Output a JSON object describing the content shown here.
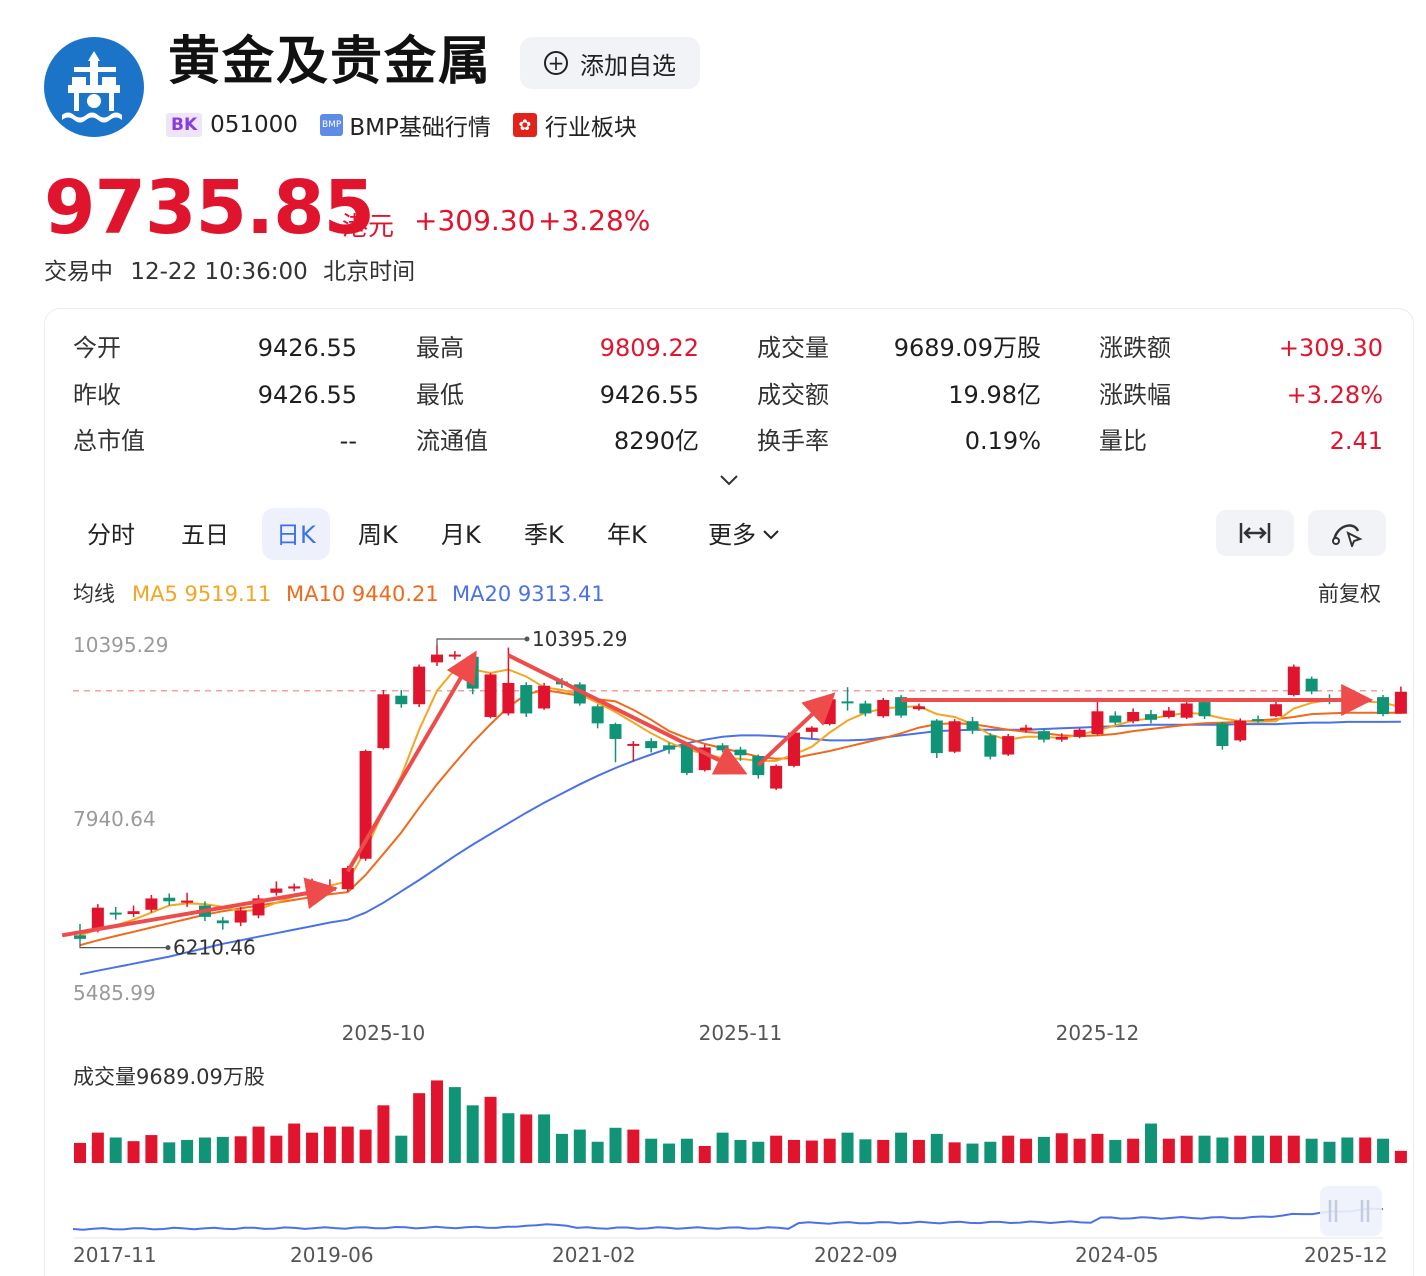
{
  "header": {
    "title": "黄金及贵金属",
    "add_watchlist_label": "添加自选",
    "tags": {
      "bk_badge": "BK",
      "code": "051000",
      "bmp_badge": "BMP",
      "bmp_label": "BMP基础行情",
      "hk_badge": "✿",
      "sector_label": "行业板块"
    }
  },
  "quote": {
    "price": "9735.85",
    "unit": "港元",
    "change": "+309.30",
    "change_pct": "+3.28%",
    "status": "交易中",
    "time": "12-22 10:36:00",
    "timezone": "北京时间"
  },
  "stats": [
    {
      "label": "今开",
      "value": "9426.55",
      "color": "#1f1f1f"
    },
    {
      "label": "最高",
      "value": "9809.22",
      "color": "#e0142d"
    },
    {
      "label": "成交量",
      "value": "9689.09万股",
      "color": "#1f1f1f"
    },
    {
      "label": "涨跌额",
      "value": "+309.30",
      "color": "#e0142d"
    },
    {
      "label": "昨收",
      "value": "9426.55",
      "color": "#1f1f1f"
    },
    {
      "label": "最低",
      "value": "9426.55",
      "color": "#1f1f1f"
    },
    {
      "label": "成交额",
      "value": "19.98亿",
      "color": "#1f1f1f"
    },
    {
      "label": "涨跌幅",
      "value": "+3.28%",
      "color": "#e0142d"
    },
    {
      "label": "总市值",
      "value": "--",
      "color": "#1f1f1f"
    },
    {
      "label": "流通值",
      "value": "8290亿",
      "color": "#1f1f1f"
    },
    {
      "label": "换手率",
      "value": "0.19%",
      "color": "#1f1f1f"
    },
    {
      "label": "量比",
      "value": "2.41",
      "color": "#e0142d"
    }
  ],
  "tabs": [
    "分时",
    "五日",
    "日K",
    "周K",
    "月K",
    "季K",
    "年K",
    "更多"
  ],
  "active_tab": "日K",
  "toolbar": {
    "fit_icon": "fit-width-icon",
    "draw_icon": "draw-tool-icon"
  },
  "colors": {
    "up": "#e0142d",
    "down": "#119476",
    "ma5": "#f4a623",
    "ma10": "#f06a1c",
    "ma20": "#4a72e8",
    "accent": "#3b73e6"
  },
  "chart_data": [
    {
      "type": "candlestick",
      "legend_label": "均线",
      "adjust_label": "前复权",
      "ma_series": [
        {
          "name": "MA5",
          "last": "9519.11"
        },
        {
          "name": "MA10",
          "last": "9440.21"
        },
        {
          "name": "MA20",
          "last": "9313.41"
        }
      ],
      "y_ticks": [
        "10395.29",
        "7940.64",
        "5485.99"
      ],
      "ylim": [
        5485.99,
        10395.29
      ],
      "x_ticks": [
        "2025-10",
        "2025-11",
        "2025-12"
      ],
      "high_marker": "10395.29",
      "low_marker": "6210.46",
      "reference_line": 9750,
      "candles": [
        {
          "o": 6300,
          "c": 6250,
          "h": 6460,
          "l": 6210
        },
        {
          "o": 6380,
          "c": 6690,
          "h": 6740,
          "l": 6340
        },
        {
          "o": 6620,
          "c": 6600,
          "h": 6700,
          "l": 6520
        },
        {
          "o": 6600,
          "c": 6640,
          "h": 6720,
          "l": 6560
        },
        {
          "o": 6660,
          "c": 6820,
          "h": 6870,
          "l": 6620
        },
        {
          "o": 6830,
          "c": 6780,
          "h": 6890,
          "l": 6720
        },
        {
          "o": 6760,
          "c": 6790,
          "h": 6900,
          "l": 6700
        },
        {
          "o": 6720,
          "c": 6560,
          "h": 6780,
          "l": 6500
        },
        {
          "o": 6510,
          "c": 6470,
          "h": 6560,
          "l": 6380
        },
        {
          "o": 6480,
          "c": 6650,
          "h": 6700,
          "l": 6430
        },
        {
          "o": 6580,
          "c": 6820,
          "h": 6870,
          "l": 6540
        },
        {
          "o": 6900,
          "c": 6960,
          "h": 7060,
          "l": 6860
        },
        {
          "o": 6960,
          "c": 6990,
          "h": 7030,
          "l": 6920
        },
        {
          "o": 6940,
          "c": 7010,
          "h": 7100,
          "l": 6900
        },
        {
          "o": 6930,
          "c": 6980,
          "h": 7090,
          "l": 6900
        },
        {
          "o": 6950,
          "c": 7250,
          "h": 7280,
          "l": 6920
        },
        {
          "o": 7380,
          "c": 8900,
          "h": 8920,
          "l": 7350
        },
        {
          "o": 8940,
          "c": 9700,
          "h": 9760,
          "l": 8920
        },
        {
          "o": 9680,
          "c": 9560,
          "h": 9760,
          "l": 9510
        },
        {
          "o": 9560,
          "c": 10090,
          "h": 10120,
          "l": 9520
        },
        {
          "o": 10150,
          "c": 10260,
          "h": 10395,
          "l": 10100
        },
        {
          "o": 10260,
          "c": 10260,
          "h": 10310,
          "l": 10190
        },
        {
          "o": 10230,
          "c": 9780,
          "h": 10260,
          "l": 9700
        },
        {
          "o": 9380,
          "c": 9980,
          "h": 10000,
          "l": 9360
        },
        {
          "o": 9430,
          "c": 9860,
          "h": 10360,
          "l": 9400
        },
        {
          "o": 9830,
          "c": 9430,
          "h": 9870,
          "l": 9380
        },
        {
          "o": 9500,
          "c": 9820,
          "h": 9860,
          "l": 9480
        },
        {
          "o": 9880,
          "c": 9840,
          "h": 9930,
          "l": 9790
        },
        {
          "o": 9840,
          "c": 9570,
          "h": 9870,
          "l": 9540
        },
        {
          "o": 9530,
          "c": 9290,
          "h": 9560,
          "l": 9220
        },
        {
          "o": 9280,
          "c": 9070,
          "h": 9300,
          "l": 8740
        },
        {
          "o": 8980,
          "c": 9000,
          "h": 9040,
          "l": 8750
        },
        {
          "o": 9040,
          "c": 8940,
          "h": 9080,
          "l": 8880
        },
        {
          "o": 8980,
          "c": 8920,
          "h": 9020,
          "l": 8860
        },
        {
          "o": 8990,
          "c": 8590,
          "h": 9010,
          "l": 8560
        },
        {
          "o": 8630,
          "c": 8950,
          "h": 8990,
          "l": 8610
        },
        {
          "o": 8980,
          "c": 8910,
          "h": 9010,
          "l": 8880
        },
        {
          "o": 8920,
          "c": 8840,
          "h": 8960,
          "l": 8760
        },
        {
          "o": 8830,
          "c": 8560,
          "h": 8850,
          "l": 8510
        },
        {
          "o": 8370,
          "c": 8690,
          "h": 8710,
          "l": 8350
        },
        {
          "o": 8690,
          "c": 9160,
          "h": 9180,
          "l": 8670
        },
        {
          "o": 9170,
          "c": 9230,
          "h": 9250,
          "l": 9080
        },
        {
          "o": 9280,
          "c": 9630,
          "h": 9650,
          "l": 9260
        },
        {
          "o": 9600,
          "c": 9590,
          "h": 9800,
          "l": 9470
        },
        {
          "o": 9570,
          "c": 9430,
          "h": 9610,
          "l": 9390
        },
        {
          "o": 9390,
          "c": 9620,
          "h": 9650,
          "l": 9370
        },
        {
          "o": 9660,
          "c": 9400,
          "h": 9690,
          "l": 9370
        },
        {
          "o": 9490,
          "c": 9530,
          "h": 9570,
          "l": 9470
        },
        {
          "o": 9330,
          "c": 8870,
          "h": 9350,
          "l": 8800
        },
        {
          "o": 8890,
          "c": 9320,
          "h": 9350,
          "l": 8870
        },
        {
          "o": 9320,
          "c": 9190,
          "h": 9380,
          "l": 9140
        },
        {
          "o": 9120,
          "c": 8820,
          "h": 9150,
          "l": 8780
        },
        {
          "o": 8850,
          "c": 9110,
          "h": 9140,
          "l": 8830
        },
        {
          "o": 9190,
          "c": 9230,
          "h": 9270,
          "l": 9160
        },
        {
          "o": 9180,
          "c": 9060,
          "h": 9210,
          "l": 9020
        },
        {
          "o": 9060,
          "c": 9100,
          "h": 9150,
          "l": 9030
        },
        {
          "o": 9100,
          "c": 9200,
          "h": 9220,
          "l": 9080
        },
        {
          "o": 9140,
          "c": 9460,
          "h": 9600,
          "l": 9120
        },
        {
          "o": 9400,
          "c": 9300,
          "h": 9460,
          "l": 9270
        },
        {
          "o": 9320,
          "c": 9450,
          "h": 9500,
          "l": 9290
        },
        {
          "o": 9420,
          "c": 9340,
          "h": 9480,
          "l": 9290
        },
        {
          "o": 9380,
          "c": 9470,
          "h": 9520,
          "l": 9360
        },
        {
          "o": 9370,
          "c": 9570,
          "h": 9590,
          "l": 9350
        },
        {
          "o": 9590,
          "c": 9390,
          "h": 9610,
          "l": 9350
        },
        {
          "o": 9290,
          "c": 8970,
          "h": 9310,
          "l": 8920
        },
        {
          "o": 9050,
          "c": 9330,
          "h": 9360,
          "l": 9030
        },
        {
          "o": 9350,
          "c": 9340,
          "h": 9400,
          "l": 9300
        },
        {
          "o": 9390,
          "c": 9560,
          "h": 9620,
          "l": 9380
        },
        {
          "o": 9690,
          "c": 10090,
          "h": 10120,
          "l": 9670
        },
        {
          "o": 9920,
          "c": 9740,
          "h": 9950,
          "l": 9700
        },
        {
          "o": 9640,
          "c": 9600,
          "h": 9700,
          "l": 9560
        },
        {
          "o": 9640,
          "c": 9580,
          "h": 9680,
          "l": 9550
        },
        {
          "o": 9600,
          "c": 9620,
          "h": 9650,
          "l": 9570
        },
        {
          "o": 9660,
          "c": 9420,
          "h": 9690,
          "l": 9390
        },
        {
          "o": 9426,
          "c": 9736,
          "h": 9809,
          "l": 9426
        }
      ],
      "ma5": [
        6300,
        6380,
        6440,
        6520,
        6620,
        6720,
        6750,
        6740,
        6700,
        6640,
        6660,
        6760,
        6850,
        6930,
        7000,
        7060,
        7500,
        8050,
        8550,
        9200,
        9750,
        10050,
        10050,
        10000,
        10050,
        9950,
        9800,
        9760,
        9700,
        9580,
        9450,
        9300,
        9150,
        9020,
        8920,
        8860,
        8800,
        8790,
        8760,
        8760,
        8850,
        8960,
        9160,
        9330,
        9440,
        9500,
        9520,
        9530,
        9420,
        9380,
        9280,
        9130,
        9060,
        9100,
        9100,
        9080,
        9130,
        9190,
        9260,
        9330,
        9360,
        9400,
        9440,
        9420,
        9360,
        9320,
        9310,
        9320,
        9500,
        9580,
        9620,
        9640,
        9600,
        9580,
        9519
      ],
      "ma10": [
        6160,
        6230,
        6290,
        6350,
        6410,
        6470,
        6530,
        6590,
        6640,
        6680,
        6720,
        6760,
        6800,
        6840,
        6880,
        6910,
        7150,
        7450,
        7750,
        8100,
        8430,
        8730,
        9020,
        9280,
        9520,
        9700,
        9760,
        9720,
        9680,
        9630,
        9600,
        9480,
        9340,
        9180,
        9080,
        9000,
        8940,
        8880,
        8820,
        8790,
        8800,
        8850,
        8900,
        8960,
        9020,
        9080,
        9150,
        9230,
        9280,
        9290,
        9280,
        9240,
        9200,
        9170,
        9150,
        9120,
        9110,
        9120,
        9140,
        9180,
        9210,
        9240,
        9270,
        9290,
        9300,
        9310,
        9330,
        9350,
        9380,
        9420,
        9430,
        9440,
        9440,
        9440,
        9440
      ],
      "ma20": [
        5750,
        5800,
        5850,
        5900,
        5950,
        6000,
        6060,
        6120,
        6180,
        6230,
        6280,
        6330,
        6380,
        6430,
        6480,
        6520,
        6620,
        6760,
        6920,
        7080,
        7250,
        7420,
        7580,
        7730,
        7880,
        8030,
        8170,
        8300,
        8430,
        8550,
        8660,
        8760,
        8850,
        8940,
        9010,
        9060,
        9100,
        9120,
        9120,
        9110,
        9090,
        9070,
        9050,
        9050,
        9060,
        9090,
        9120,
        9150,
        9180,
        9190,
        9200,
        9200,
        9200,
        9200,
        9210,
        9220,
        9230,
        9240,
        9250,
        9260,
        9270,
        9270,
        9270,
        9270,
        9270,
        9280,
        9280,
        9280,
        9290,
        9300,
        9300,
        9310,
        9310,
        9310,
        9313
      ]
    },
    {
      "type": "bar",
      "title": "成交量9689.09万股",
      "values": [
        33,
        50,
        42,
        36,
        46,
        34,
        38,
        42,
        43,
        44,
        60,
        45,
        65,
        50,
        60,
        60,
        55,
        95,
        45,
        115,
        136,
        125,
        95,
        109,
        82,
        80,
        80,
        48,
        55,
        35,
        58,
        55,
        40,
        32,
        40,
        28,
        50,
        38,
        35,
        45,
        38,
        37,
        40,
        50,
        39,
        38,
        50,
        38,
        48,
        34,
        32,
        35,
        45,
        40,
        43,
        49,
        40,
        48,
        38,
        40,
        65,
        40,
        45,
        45,
        42,
        45,
        45,
        45,
        45,
        40,
        35,
        42,
        42,
        40,
        20
      ],
      "up": [
        true,
        true,
        false,
        true,
        true,
        false,
        false,
        false,
        false,
        true,
        true,
        true,
        true,
        true,
        true,
        true,
        true,
        true,
        false,
        true,
        true,
        false,
        false,
        true,
        false,
        true,
        false,
        false,
        false,
        false,
        false,
        true,
        false,
        false,
        false,
        true,
        false,
        false,
        false,
        true,
        true,
        true,
        true,
        false,
        false,
        true,
        false,
        true,
        false,
        true,
        false,
        false,
        true,
        true,
        false,
        true,
        true,
        true,
        false,
        true,
        false,
        true,
        true,
        false,
        false,
        true,
        false,
        true,
        true,
        false,
        false,
        false,
        true,
        false,
        true
      ]
    },
    {
      "type": "line",
      "x_ticks": [
        "2017-11",
        "2019-06",
        "2021-02",
        "2022-09",
        "2024-05",
        "2025-12"
      ]
    }
  ]
}
